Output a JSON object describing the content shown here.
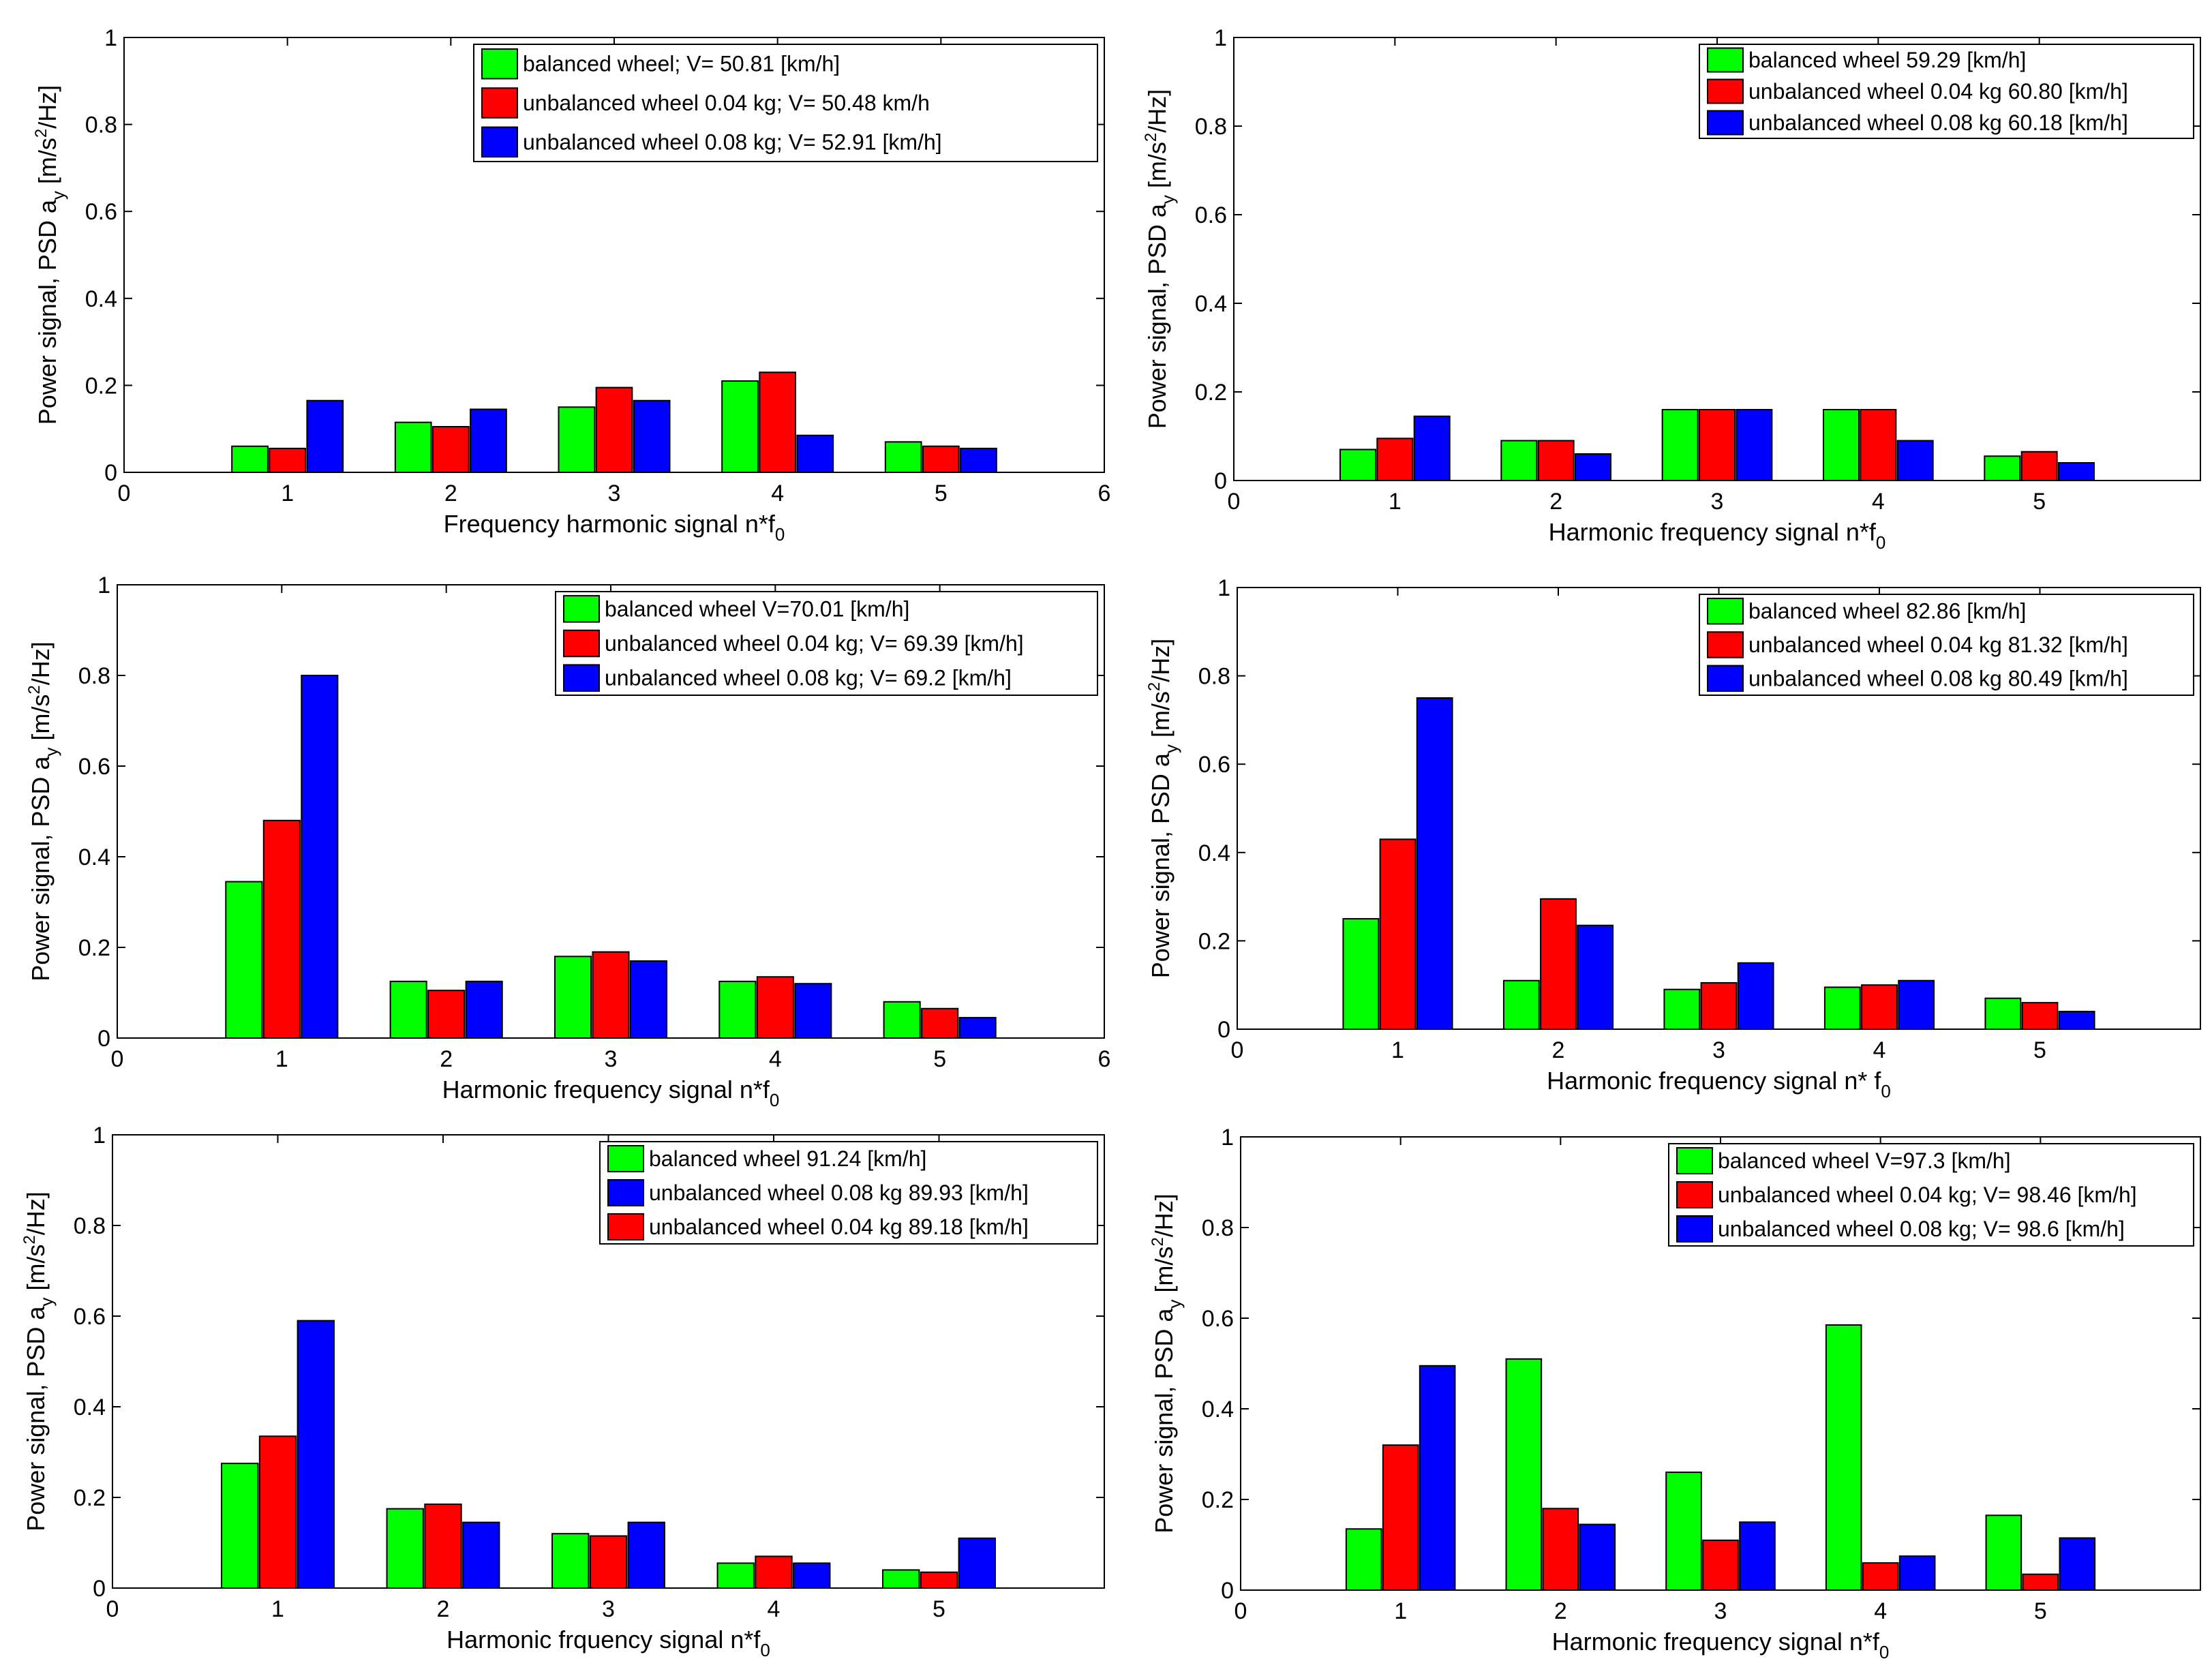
{
  "colors": {
    "green": "#00ff00",
    "red": "#ff0000",
    "blue": "#0000ff",
    "edge": "#000000"
  },
  "chart_data": [
    {
      "type": "bar",
      "title": "",
      "xlabel": "Frequency harmonic signal  n*f",
      "xlabel_sub": "0",
      "ylabel": "Power signal, PSD a",
      "ylabel_sub": "y",
      "ylabel_unit_pre": " [m/s",
      "ylabel_unit_sup": "2",
      "ylabel_unit_post": "/Hz]",
      "xlim": [
        0,
        6
      ],
      "ylim": [
        0,
        1
      ],
      "xticks": [
        "0",
        "1",
        "2",
        "3",
        "4",
        "5",
        "6"
      ],
      "yticks": [
        "0",
        "0.2",
        "0.4",
        "0.6",
        "0.8",
        "1"
      ],
      "categories": [
        "1",
        "2",
        "3",
        "4",
        "5"
      ],
      "legend_position": "top-right",
      "series": [
        {
          "name": "balanced wheel; V= 50.81 [km/h]",
          "color": "green",
          "values": [
            0.06,
            0.115,
            0.15,
            0.21,
            0.07
          ]
        },
        {
          "name": "unbalanced wheel 0.04 kg; V= 50.48 km/h",
          "color": "red",
          "values": [
            0.055,
            0.105,
            0.195,
            0.23,
            0.06
          ]
        },
        {
          "name": "unbalanced wheel 0.08 kg; V= 52.91 [km/h]",
          "color": "blue",
          "values": [
            0.165,
            0.145,
            0.165,
            0.085,
            0.055
          ]
        }
      ]
    },
    {
      "type": "bar",
      "title": "",
      "xlabel": "Harmonic frequency signal n*f",
      "xlabel_sub": "0",
      "ylabel": "Power signal, PSD a",
      "ylabel_sub": "y",
      "ylabel_unit_pre": " [m/s",
      "ylabel_unit_sup": "2",
      "ylabel_unit_post": "/Hz]",
      "xlim": [
        0,
        6
      ],
      "ylim": [
        0,
        1
      ],
      "xticks": [
        "0",
        "1",
        "2",
        "3",
        "4",
        "5",
        ""
      ],
      "yticks": [
        "0",
        "0.2",
        "0.4",
        "0.6",
        "0.8",
        "1"
      ],
      "categories": [
        "1",
        "2",
        "3",
        "4",
        "5"
      ],
      "legend_position": "top-right",
      "series": [
        {
          "name": "balanced wheel 59.29 [km/h]",
          "color": "green",
          "values": [
            0.07,
            0.09,
            0.16,
            0.16,
            0.055
          ]
        },
        {
          "name": "unbalanced wheel 0.04 kg 60.80 [km/h]",
          "color": "red",
          "values": [
            0.095,
            0.09,
            0.16,
            0.16,
            0.065
          ]
        },
        {
          "name": "unbalanced wheel 0.08 kg 60.18 [km/h]",
          "color": "blue",
          "values": [
            0.145,
            0.06,
            0.16,
            0.09,
            0.04
          ]
        }
      ]
    },
    {
      "type": "bar",
      "title": "",
      "xlabel": "Harmonic frequency signal n*f",
      "xlabel_sub": "0",
      "ylabel": "Power signal, PSD a",
      "ylabel_sub": "y",
      "ylabel_unit_pre": " [m/s",
      "ylabel_unit_sup": "2",
      "ylabel_unit_post": "/Hz]",
      "xlim": [
        0,
        6
      ],
      "ylim": [
        0,
        1
      ],
      "xticks": [
        "0",
        "1",
        "2",
        "3",
        "4",
        "5",
        "6"
      ],
      "yticks": [
        "0",
        "0.2",
        "0.4",
        "0.6",
        "0.8",
        "1"
      ],
      "categories": [
        "1",
        "2",
        "3",
        "4",
        "5"
      ],
      "legend_position": "top-right",
      "series": [
        {
          "name": "balanced wheel V=70.01 [km/h]",
          "color": "green",
          "values": [
            0.345,
            0.125,
            0.18,
            0.125,
            0.08
          ]
        },
        {
          "name": "unbalanced wheel 0.04 kg; V= 69.39 [km/h]",
          "color": "red",
          "values": [
            0.48,
            0.105,
            0.19,
            0.135,
            0.065
          ]
        },
        {
          "name": "unbalanced wheel 0.08 kg; V= 69.2 [km/h]",
          "color": "blue",
          "values": [
            0.8,
            0.125,
            0.17,
            0.12,
            0.045
          ]
        }
      ]
    },
    {
      "type": "bar",
      "title": "",
      "xlabel": "Harmonic frequency signal n* f",
      "xlabel_sub": "0",
      "ylabel": "Power signal, PSD a",
      "ylabel_sub": "y",
      "ylabel_unit_pre": " [m/s",
      "ylabel_unit_sup": "2",
      "ylabel_unit_post": "/Hz]",
      "xlim": [
        0,
        6
      ],
      "ylim": [
        0,
        1
      ],
      "xticks": [
        "0",
        "1",
        "2",
        "3",
        "4",
        "5",
        ""
      ],
      "yticks": [
        "0",
        "0.2",
        "0.4",
        "0.6",
        "0.8",
        "1"
      ],
      "categories": [
        "1",
        "2",
        "3",
        "4",
        "5"
      ],
      "legend_position": "top-right",
      "series": [
        {
          "name": "balanced wheel 82.86 [km/h]",
          "color": "green",
          "values": [
            0.25,
            0.11,
            0.09,
            0.095,
            0.07
          ]
        },
        {
          "name": "unbalanced wheel 0.04 kg 81.32 [km/h]",
          "color": "red",
          "values": [
            0.43,
            0.295,
            0.105,
            0.1,
            0.06
          ]
        },
        {
          "name": "unbalanced wheel 0.08 kg 80.49 [km/h]",
          "color": "blue",
          "values": [
            0.75,
            0.235,
            0.15,
            0.11,
            0.04
          ]
        }
      ]
    },
    {
      "type": "bar",
      "title": "",
      "xlabel": "Harmonic frquency signal n*f",
      "xlabel_sub": "0",
      "ylabel": "Power signal, PSD a",
      "ylabel_sub": "y",
      "ylabel_unit_pre": " [m/s",
      "ylabel_unit_sup": "2",
      "ylabel_unit_post": "/Hz]",
      "xlim": [
        0,
        6
      ],
      "ylim": [
        0,
        1
      ],
      "xticks": [
        "0",
        "1",
        "2",
        "3",
        "4",
        "5",
        ""
      ],
      "yticks": [
        "0",
        "0.2",
        "0.4",
        "0.6",
        "0.8",
        "1"
      ],
      "categories": [
        "1",
        "2",
        "3",
        "4",
        "5"
      ],
      "legend_position": "top-right",
      "series": [
        {
          "name": "balanced wheel 91.24 [km/h]",
          "color": "green",
          "values": [
            0.275,
            0.175,
            0.12,
            0.055,
            0.04
          ]
        },
        {
          "name": "unbalanced wheel 0.08 kg 89.93 [km/h]",
          "color": "blue",
          "values": [
            0.59,
            0.145,
            0.145,
            0.055,
            0.11
          ]
        },
        {
          "name": "unbalanced wheel 0.04 kg 89.18 [km/h]",
          "color": "red",
          "values": [
            0.335,
            0.185,
            0.115,
            0.07,
            0.035
          ]
        }
      ],
      "bar_order": [
        "green",
        "red",
        "blue"
      ]
    },
    {
      "type": "bar",
      "title": "",
      "xlabel": "Harmonic frequency signal n*f",
      "xlabel_sub": "0",
      "ylabel": "Power signal, PSD a",
      "ylabel_sub": "y",
      "ylabel_unit_pre": " [m/s",
      "ylabel_unit_sup": "2",
      "ylabel_unit_post": "/Hz]",
      "xlim": [
        0,
        6
      ],
      "ylim": [
        0,
        1
      ],
      "xticks": [
        "0",
        "1",
        "2",
        "3",
        "4",
        "5",
        ""
      ],
      "yticks": [
        "0",
        "0.2",
        "0.4",
        "0.6",
        "0.8",
        "1"
      ],
      "categories": [
        "1",
        "2",
        "3",
        "4",
        "5"
      ],
      "legend_position": "top-right",
      "series": [
        {
          "name": "balanced wheel V=97.3 [km/h]",
          "color": "green",
          "values": [
            0.135,
            0.51,
            0.26,
            0.585,
            0.165
          ]
        },
        {
          "name": "unbalanced wheel 0.04 kg; V= 98.46 [km/h]",
          "color": "red",
          "values": [
            0.32,
            0.18,
            0.11,
            0.06,
            0.035
          ]
        },
        {
          "name": "unbalanced wheel 0.08 kg; V= 98.6 [km/h]",
          "color": "blue",
          "values": [
            0.495,
            0.145,
            0.15,
            0.075,
            0.115
          ]
        }
      ]
    }
  ]
}
